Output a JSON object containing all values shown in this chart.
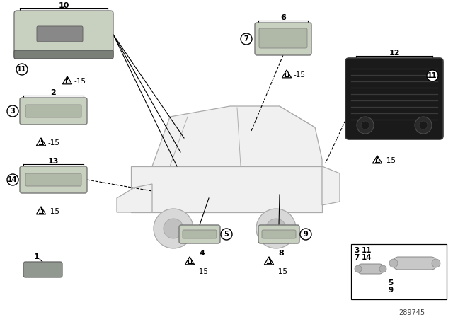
{
  "background_color": "#ffffff",
  "part_number": "289745",
  "fig_width": 6.4,
  "fig_height": 4.48,
  "dpi": 100,
  "car_color": "#f0f0f0",
  "car_edge": "#aaaaaa",
  "light_color": "#c8d0c0",
  "light_inner": "#b0b8a8",
  "dark_panel": "#1a1a1a",
  "part1_color": "#909890"
}
